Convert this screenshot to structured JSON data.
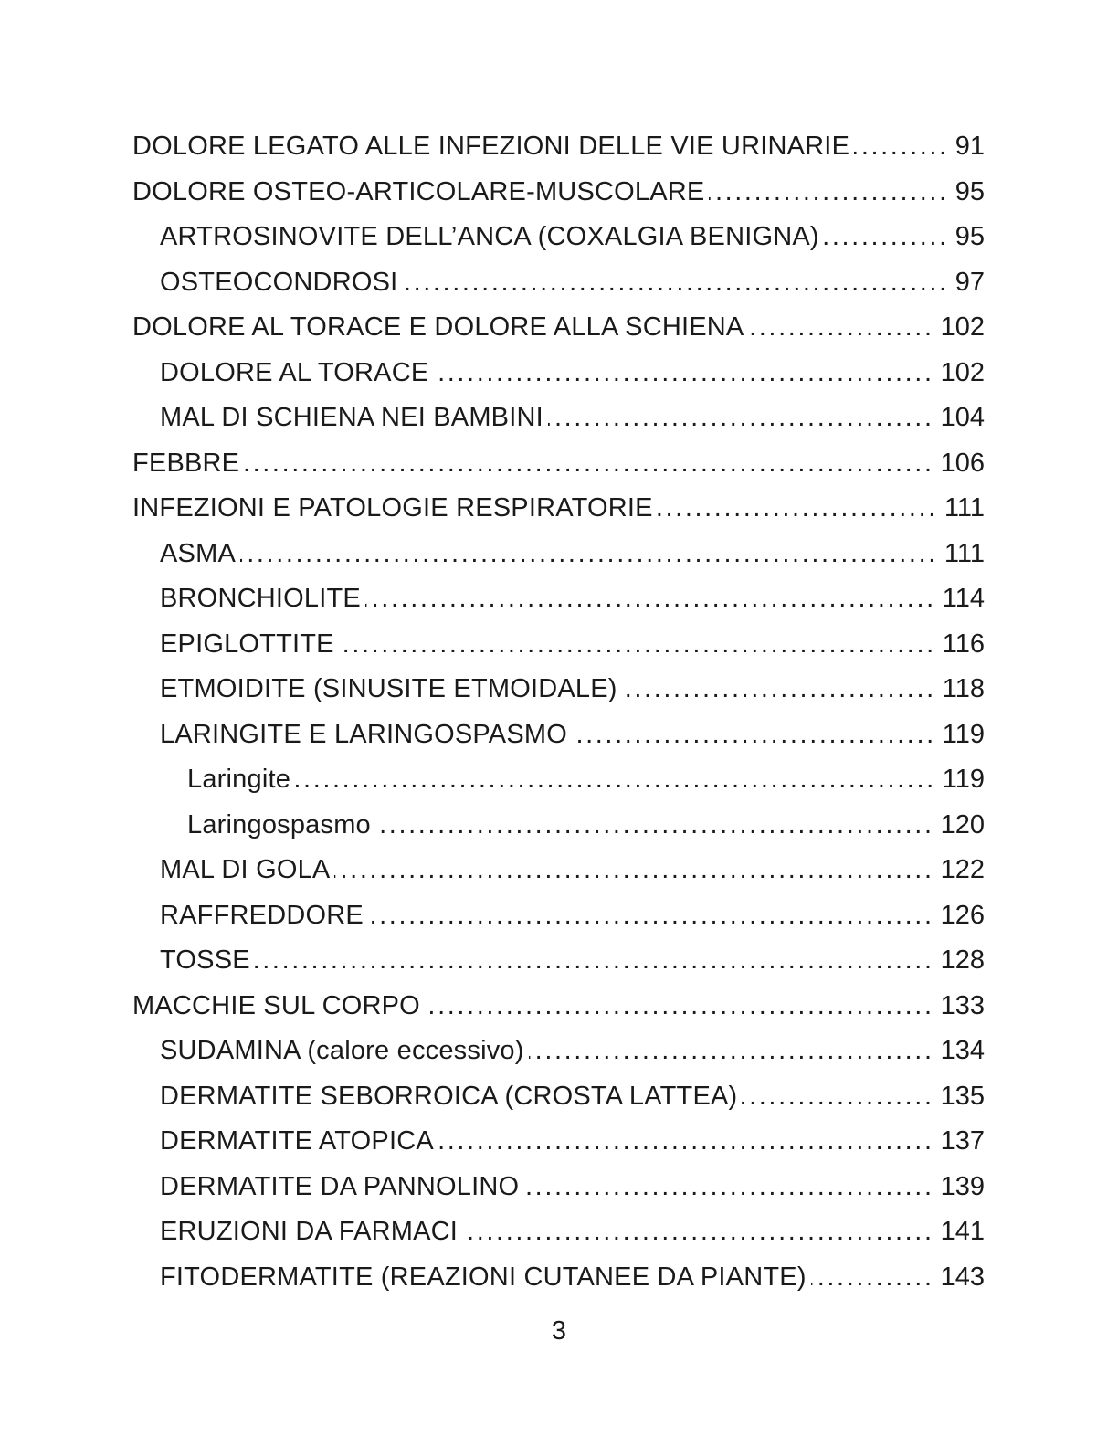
{
  "colors": {
    "text": "#1a1a1a",
    "background": "#ffffff"
  },
  "page": {
    "footer_page_number": "3"
  },
  "toc": {
    "entries": [
      {
        "level": 1,
        "title": "DOLORE LEGATO ALLE INFEZIONI DELLE VIE URINARIE",
        "page": "91"
      },
      {
        "level": 1,
        "title": "DOLORE OSTEO-ARTICOLARE-MUSCOLARE",
        "page": "95"
      },
      {
        "level": 2,
        "title": "ARTROSINOVITE DELL’ANCA (COXALGIA BENIGNA)",
        "page": "95"
      },
      {
        "level": 2,
        "title": "OSTEOCONDROSI",
        "page": "97"
      },
      {
        "level": 1,
        "title": "DOLORE AL TORACE E DOLORE ALLA SCHIENA",
        "page": "102"
      },
      {
        "level": 2,
        "title": "DOLORE AL TORACE",
        "page": "102"
      },
      {
        "level": 2,
        "title": "MAL DI SCHIENA NEI BAMBINI",
        "page": "104"
      },
      {
        "level": 1,
        "title": "FEBBRE",
        "page": "106"
      },
      {
        "level": 1,
        "title": "INFEZIONI E PATOLOGIE RESPIRATORIE",
        "page": "111"
      },
      {
        "level": 2,
        "title": "ASMA",
        "page": "111"
      },
      {
        "level": 2,
        "title": "BRONCHIOLITE",
        "page": "114"
      },
      {
        "level": 2,
        "title": "EPIGLOTTITE",
        "page": "116"
      },
      {
        "level": 2,
        "title": "ETMOIDITE (SINUSITE ETMOIDALE)",
        "page": "118"
      },
      {
        "level": 2,
        "title": "LARINGITE E LARINGOSPASMO",
        "page": "119"
      },
      {
        "level": 3,
        "title": "Laringite",
        "page": "119"
      },
      {
        "level": 3,
        "title": "Laringospasmo",
        "page": "120"
      },
      {
        "level": 2,
        "title": "MAL DI GOLA",
        "page": "122"
      },
      {
        "level": 2,
        "title": "RAFFREDDORE",
        "page": "126"
      },
      {
        "level": 2,
        "title": "TOSSE",
        "page": "128"
      },
      {
        "level": 1,
        "title": "MACCHIE SUL CORPO",
        "page": "133"
      },
      {
        "level": 2,
        "title": "SUDAMINA (calore eccessivo)",
        "page": "134"
      },
      {
        "level": 2,
        "title": "DERMATITE SEBORROICA (CROSTA LATTEA)",
        "page": "135"
      },
      {
        "level": 2,
        "title": "DERMATITE ATOPICA",
        "page": "137"
      },
      {
        "level": 2,
        "title": "DERMATITE DA PANNOLINO",
        "page": "139"
      },
      {
        "level": 2,
        "title": "ERUZIONI DA FARMACI",
        "page": "141"
      },
      {
        "level": 2,
        "title": "FITODERMATITE (REAZIONI CUTANEE DA PIANTE)",
        "page": "143"
      }
    ]
  }
}
